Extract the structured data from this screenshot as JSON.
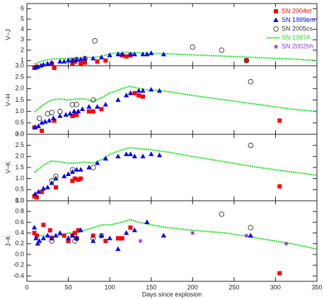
{
  "chart_data": [
    {
      "type": "scatter",
      "ylabel": "V−J",
      "xlim": [
        0,
        350
      ],
      "xticks": [
        0,
        50,
        100,
        150,
        200,
        250,
        300,
        350
      ],
      "ylim": [
        0.5,
        6.5
      ],
      "yticks": [
        1,
        2,
        3,
        4,
        5,
        6
      ],
      "legend": [
        {
          "name": "SN 2004et",
          "color": "#ff0000",
          "marker": "square"
        },
        {
          "name": "SN 1999em",
          "color": "#0000ff",
          "marker": "triangle"
        },
        {
          "name": "SN 2005cs",
          "color": "#333333",
          "marker": "circle"
        },
        {
          "name": "SN 1987A",
          "color": "#22dd22",
          "marker": "dotted"
        },
        {
          "name": "SN 2002hh",
          "color": "#9933cc",
          "marker": "asterisk"
        }
      ],
      "series": [
        {
          "marker": "dotted",
          "color": "#22dd22",
          "x": [
            10,
            20,
            30,
            40,
            50,
            60,
            70,
            80,
            90,
            100,
            110,
            120,
            130,
            150,
            170,
            200,
            230,
            260,
            290,
            320,
            350
          ],
          "y": [
            0.7,
            1.0,
            1.15,
            1.2,
            1.2,
            1.25,
            1.3,
            1.3,
            1.4,
            1.65,
            1.75,
            1.8,
            1.75,
            1.7,
            1.65,
            1.55,
            1.45,
            1.35,
            1.25,
            1.15,
            1.0
          ]
        },
        {
          "marker": "square",
          "color": "#ff0000",
          "x": [
            9,
            12,
            30,
            33,
            55,
            58,
            65,
            70,
            85,
            95,
            115,
            120,
            125,
            265
          ],
          "y": [
            0.3,
            0.4,
            0.7,
            0.3,
            0.7,
            0.9,
            0.7,
            0.8,
            0.9,
            1.0,
            1.5,
            1.4,
            1.5,
            1.0
          ]
        },
        {
          "marker": "triangle",
          "color": "#0000ff",
          "x": [
            10,
            13,
            17,
            20,
            25,
            30,
            40,
            45,
            50,
            55,
            60,
            65,
            70,
            80,
            90,
            100,
            110,
            115,
            125,
            130,
            140,
            145,
            150,
            165
          ],
          "y": [
            0.3,
            0.4,
            0.5,
            0.6,
            0.7,
            0.8,
            0.9,
            0.9,
            1.0,
            1.0,
            1.1,
            1.1,
            1.2,
            1.2,
            1.3,
            1.5,
            1.6,
            1.6,
            1.6,
            1.6,
            1.6,
            1.6,
            1.7,
            1.6
          ]
        },
        {
          "marker": "circle",
          "color": "#333333",
          "x": [
            55,
            60,
            70,
            82,
            200,
            235,
            265
          ],
          "y": [
            1.0,
            1.1,
            1.2,
            2.9,
            2.3,
            2.0,
            1.0
          ]
        }
      ]
    },
    {
      "type": "scatter",
      "ylabel": "V−H",
      "xlim": [
        0,
        350
      ],
      "xticks": [
        0,
        50,
        100,
        150,
        200,
        250,
        300,
        350
      ],
      "ylim": [
        0,
        3
      ],
      "yticks": [
        {
          "value": 0,
          "label": "0.0"
        },
        0.5,
        {
          "value": 1,
          "label": "1.0"
        },
        1.5,
        {
          "value": 2,
          "label": "2.0"
        },
        2.5,
        {
          "value": 3,
          "label": "3.0"
        }
      ],
      "series": [
        {
          "marker": "dotted",
          "color": "#22dd22",
          "x": [
            10,
            20,
            30,
            40,
            50,
            60,
            70,
            80,
            90,
            100,
            115,
            125,
            130,
            145,
            165,
            200,
            240,
            280,
            320,
            350
          ],
          "y": [
            1.0,
            1.3,
            1.5,
            1.55,
            1.5,
            1.55,
            1.55,
            1.45,
            1.6,
            1.8,
            2.0,
            2.1,
            2.05,
            1.95,
            1.9,
            1.7,
            1.5,
            1.3,
            1.1,
            1.0
          ]
        },
        {
          "marker": "square",
          "color": "#ff0000",
          "x": [
            9,
            18,
            33,
            55,
            58,
            60,
            75,
            80,
            90,
            130,
            135,
            140,
            305
          ],
          "y": [
            0.3,
            0.15,
            0.6,
            0.8,
            0.9,
            0.85,
            1.0,
            1.0,
            1.1,
            1.8,
            1.7,
            1.65,
            0.6
          ]
        },
        {
          "marker": "triangle",
          "color": "#0000ff",
          "x": [
            10,
            14,
            18,
            22,
            27,
            32,
            40,
            47,
            52,
            57,
            62,
            67,
            75,
            85,
            95,
            110,
            120,
            125,
            135,
            140,
            150,
            160
          ],
          "y": [
            0.3,
            0.35,
            0.5,
            0.55,
            0.6,
            0.7,
            0.8,
            0.85,
            0.9,
            1.0,
            1.0,
            1.1,
            1.2,
            1.2,
            1.3,
            1.5,
            1.7,
            1.8,
            1.9,
            1.9,
            1.95,
            1.9
          ]
        },
        {
          "marker": "circle",
          "color": "#333333",
          "x": [
            15,
            25,
            30,
            40,
            55,
            60,
            80,
            270
          ],
          "y": [
            0.7,
            0.9,
            0.95,
            1.0,
            1.3,
            1.3,
            1.5,
            2.3
          ]
        }
      ]
    },
    {
      "type": "scatter",
      "ylabel": "V−K",
      "xlim": [
        0,
        350
      ],
      "xticks": [
        0,
        50,
        100,
        150,
        200,
        250,
        300,
        350
      ],
      "ylim": [
        0,
        3
      ],
      "yticks": [
        {
          "value": 0,
          "label": "0.0"
        },
        0.5,
        {
          "value": 1,
          "label": "1.0"
        },
        1.5,
        {
          "value": 2,
          "label": "2.0"
        },
        2.5,
        {
          "value": 3,
          "label": "3.0"
        }
      ],
      "series": [
        {
          "marker": "dotted",
          "color": "#22dd22",
          "x": [
            10,
            20,
            30,
            40,
            50,
            60,
            70,
            80,
            90,
            100,
            115,
            125,
            135,
            150,
            170,
            200,
            240,
            280,
            320,
            350
          ],
          "y": [
            1.3,
            1.6,
            1.8,
            1.75,
            1.7,
            1.7,
            1.75,
            1.7,
            1.85,
            2.1,
            2.3,
            2.4,
            2.35,
            2.3,
            2.2,
            2.0,
            1.75,
            1.5,
            1.3,
            1.15
          ]
        },
        {
          "marker": "square",
          "color": "#ff0000",
          "x": [
            9,
            12,
            18,
            35,
            55,
            58,
            62,
            65,
            305
          ],
          "y": [
            0.2,
            0.15,
            0.4,
            0.6,
            0.9,
            1.0,
            0.95,
            1.0,
            0.65
          ]
        },
        {
          "marker": "triangle",
          "color": "#0000ff",
          "x": [
            10,
            14,
            20,
            25,
            30,
            35,
            45,
            50,
            55,
            60,
            65,
            75,
            85,
            95,
            110,
            120,
            125,
            130,
            140,
            150,
            160
          ],
          "y": [
            0.3,
            0.4,
            0.55,
            0.6,
            0.8,
            1.0,
            1.1,
            1.2,
            1.3,
            1.4,
            1.4,
            1.5,
            1.7,
            1.9,
            2.0,
            2.1,
            2.1,
            2.0,
            2.0,
            2.1,
            2.05
          ]
        },
        {
          "marker": "circle",
          "color": "#333333",
          "x": [
            30,
            35,
            55,
            80,
            270
          ],
          "y": [
            0.9,
            1.1,
            1.4,
            1.5,
            2.5
          ]
        }
      ]
    },
    {
      "type": "scatter",
      "ylabel": "J−K",
      "xlabel": "Days since explosion",
      "xlim": [
        0,
        350
      ],
      "xticks": [
        0,
        50,
        100,
        150,
        200,
        250,
        300,
        350
      ],
      "ylim": [
        -0.5,
        1.0
      ],
      "yticks": [
        -0.4,
        -0.2,
        {
          "value": 0,
          "label": "0.0"
        },
        0.2,
        0.4,
        0.6,
        0.8,
        {
          "value": 1,
          "label": "1.0"
        }
      ],
      "series": [
        {
          "marker": "dotted",
          "color": "#22dd22",
          "x": [
            10,
            20,
            30,
            40,
            50,
            60,
            70,
            80,
            90,
            100,
            115,
            125,
            135,
            150,
            170,
            200,
            240,
            280,
            320,
            350
          ],
          "y": [
            0.35,
            0.35,
            0.35,
            0.35,
            0.4,
            0.4,
            0.45,
            0.5,
            0.55,
            0.55,
            0.6,
            0.65,
            0.6,
            0.55,
            0.5,
            0.45,
            0.4,
            0.3,
            0.2,
            0.1
          ]
        },
        {
          "marker": "square",
          "color": "#ff0000",
          "x": [
            9,
            12,
            20,
            28,
            30,
            45,
            50,
            55,
            58,
            60,
            62,
            80,
            95,
            110,
            115,
            125,
            305
          ],
          "y": [
            0.4,
            0.35,
            0.55,
            0.45,
            0.3,
            0.35,
            0.25,
            0.35,
            0.4,
            0.3,
            0.45,
            0.35,
            0.25,
            0.3,
            0.3,
            0.5,
            -0.35
          ]
        },
        {
          "marker": "triangle",
          "color": "#0000ff",
          "x": [
            9,
            11,
            13,
            15,
            20,
            25,
            30,
            35,
            40,
            50,
            55,
            60,
            65,
            80,
            90,
            100,
            110,
            120,
            130,
            145,
            165,
            270
          ],
          "y": [
            0.5,
            0.3,
            0.2,
            0.25,
            0.3,
            0.35,
            0.3,
            0.35,
            0.4,
            0.3,
            0.35,
            0.3,
            0.45,
            0.25,
            0.35,
            0.3,
            0.1,
            0.4,
            0.45,
            0.6,
            0.35,
            0.35
          ]
        },
        {
          "marker": "circle",
          "color": "#333333",
          "x": [
            30,
            58,
            60,
            80,
            90,
            235,
            270
          ],
          "y": [
            0.25,
            0.25,
            0.3,
            0.3,
            0.35,
            0.75,
            0.5
          ]
        },
        {
          "marker": "asterisk",
          "color": "#9933cc",
          "x": [
            137,
            200,
            265,
            313
          ],
          "y": [
            0.25,
            0.4,
            0.35,
            0.2
          ]
        }
      ]
    }
  ]
}
